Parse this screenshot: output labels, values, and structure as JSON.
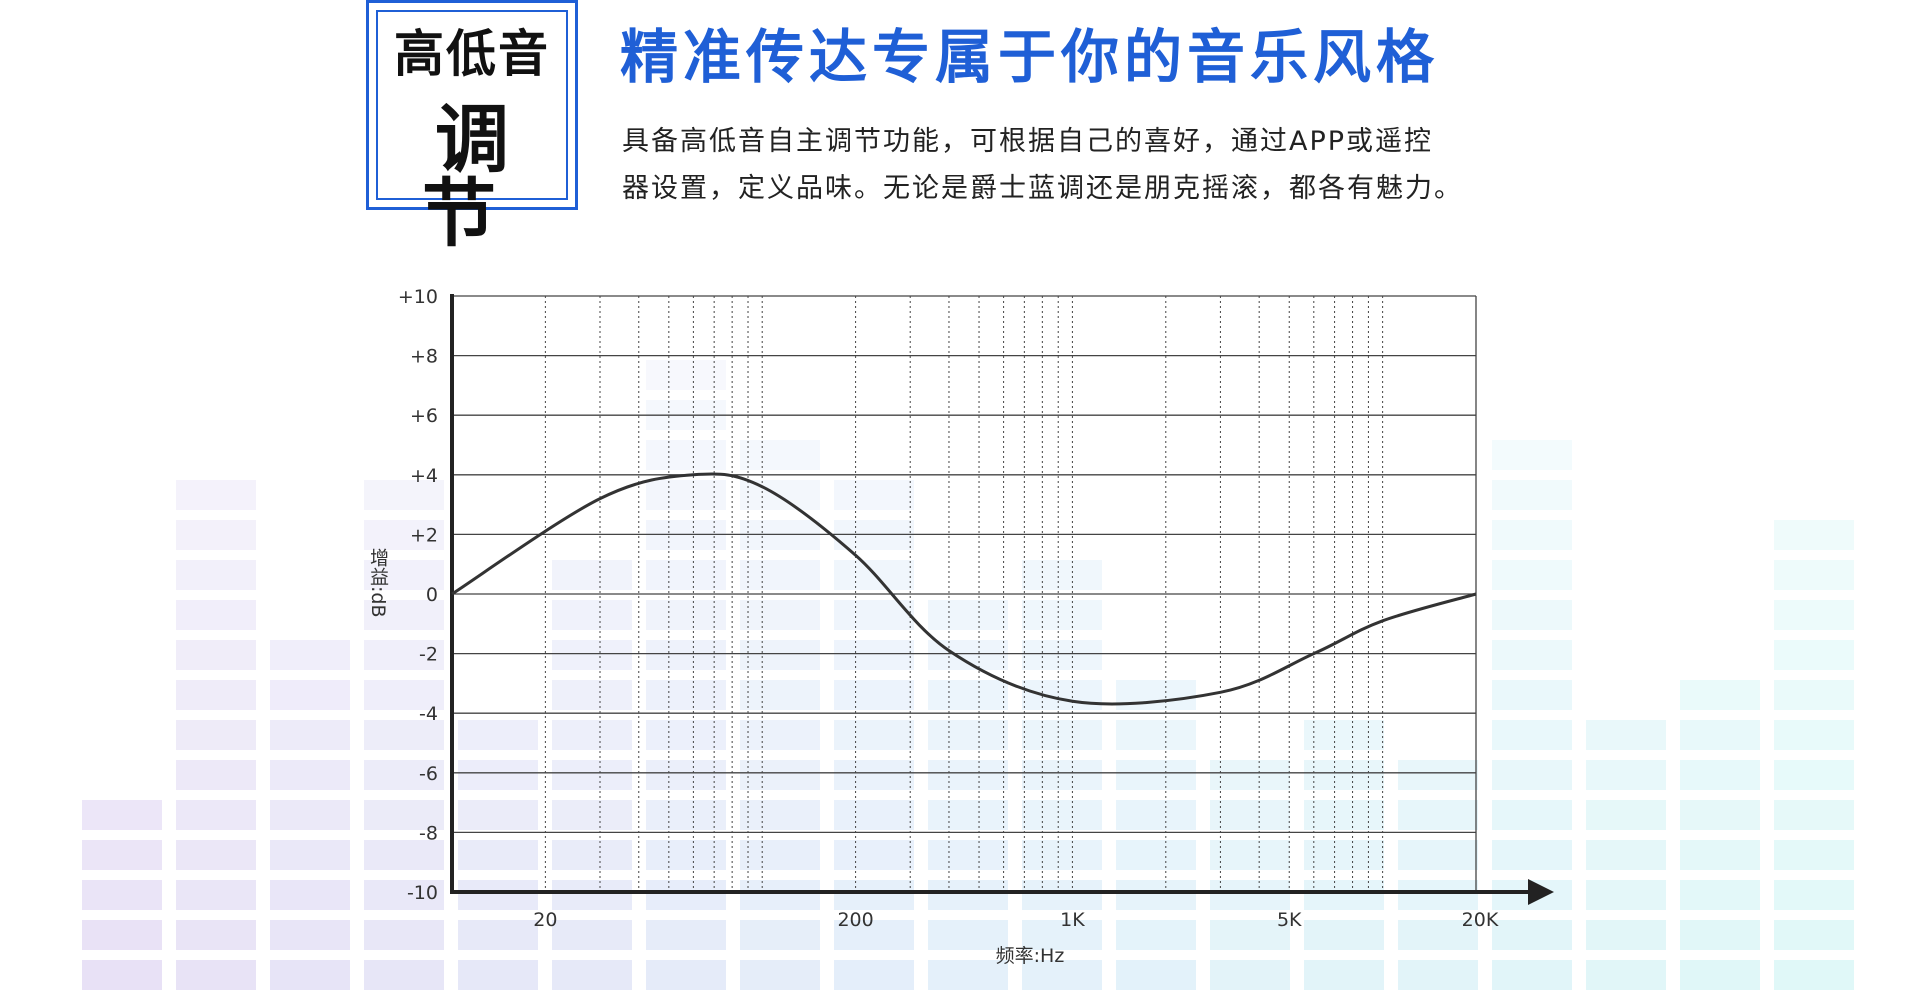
{
  "badge": {
    "line1": "高低音",
    "line2": "调节"
  },
  "headline": "精准传达专属于你的音乐风格",
  "description": {
    "line1": "具备高低音自主调节功能，可根据自己的喜好，通过APP或遥控",
    "line2": "器设置，定义品味。无论是爵士蓝调还是朋克摇滚，都各有魅力。"
  },
  "colors": {
    "accent": "#1f5fd6",
    "curve": "#333333",
    "axis": "#222222",
    "grid": "#444444"
  },
  "chart_data": {
    "type": "line",
    "xscale": "log",
    "xlim": [
      10,
      20000
    ],
    "ylim": [
      -10,
      10
    ],
    "xlabel": "频率:Hz",
    "ylabel": "增益:dB",
    "y_ticks": [
      10,
      8,
      6,
      4,
      2,
      0,
      -2,
      -4,
      -6,
      -8,
      -10
    ],
    "y_tick_labels": [
      "+10",
      "+8",
      "+6",
      "+4",
      "+2",
      "0",
      "-2",
      "-4",
      "-6",
      "-8",
      "-10"
    ],
    "x_tick_labels": [
      {
        "value": 20,
        "label": "20"
      },
      {
        "value": 200,
        "label": "200"
      },
      {
        "value": 1000,
        "label": "1K"
      },
      {
        "value": 5000,
        "label": "5K"
      },
      {
        "value": 20000,
        "label": "20K"
      }
    ],
    "x_gridlines": [
      20,
      30,
      40,
      50,
      60,
      70,
      80,
      90,
      100,
      200,
      300,
      400,
      500,
      600,
      700,
      800,
      900,
      1000,
      2000,
      3000,
      4000,
      5000,
      6000,
      7000,
      8000,
      9000,
      10000,
      20000
    ],
    "grid": true,
    "series": [
      {
        "x": [
          10,
          30,
          60,
          100,
          200,
          400,
          1000,
          3000,
          6000,
          10000,
          20000
        ],
        "values": [
          0,
          3.2,
          4,
          3.6,
          1.3,
          -1.9,
          -3.6,
          -3.3,
          -2,
          -0.9,
          0
        ]
      }
    ]
  }
}
